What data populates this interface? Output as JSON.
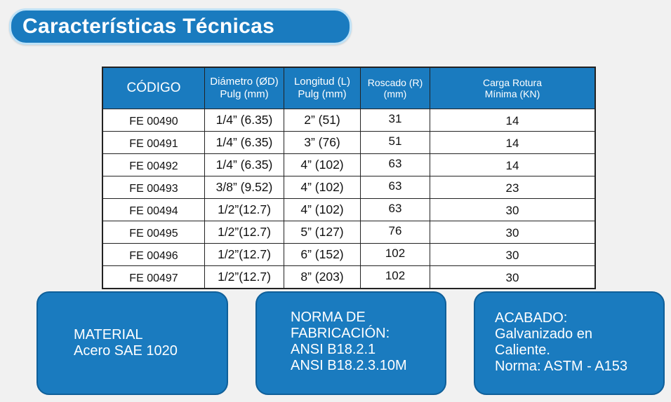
{
  "header": {
    "title": "Características Técnicas"
  },
  "table": {
    "columns": {
      "code": [
        "CÓDIGO"
      ],
      "diameter": [
        "Diámetro (ØD)",
        "Pulg (mm)"
      ],
      "length": [
        "Longitud (L)",
        "Pulg  (mm)"
      ],
      "thread": [
        "Roscado (R)",
        "(mm)"
      ],
      "load": [
        "Carga Rotura",
        "Mínima (KN)"
      ]
    },
    "rows": [
      {
        "code": "FE 00490",
        "diameter": "1/4” (6.35)",
        "length": "2” (51)",
        "thread": "31",
        "load": "14"
      },
      {
        "code": "FE 00491",
        "diameter": "1/4” (6.35)",
        "length": "3” (76)",
        "thread": "51",
        "load": "14"
      },
      {
        "code": "FE 00492",
        "diameter": "1/4” (6.35)",
        "length": "4” (102)",
        "thread": "63",
        "load": "14"
      },
      {
        "code": "FE 00493",
        "diameter": "3/8” (9.52)",
        "length": "4” (102)",
        "thread": "63",
        "load": "23"
      },
      {
        "code": "FE 00494",
        "diameter": "1/2”(12.7)",
        "length": "4” (102)",
        "thread": "63",
        "load": "30"
      },
      {
        "code": "FE 00495",
        "diameter": "1/2”(12.7)",
        "length": "5” (127)",
        "thread": "76",
        "load": "30"
      },
      {
        "code": "FE 00496",
        "diameter": "1/2”(12.7)",
        "length": "6” (152)",
        "thread": "102",
        "load": "30"
      },
      {
        "code": "FE 00497",
        "diameter": "1/2”(12.7)",
        "length": "8” (203)",
        "thread": "102",
        "load": "30"
      }
    ]
  },
  "cards": {
    "material": [
      "MATERIAL",
      "Acero SAE 1020"
    ],
    "norma": [
      "NORMA DE",
      "FABRICACIÓN:",
      "ANSI B18.2.1",
      "ANSI B18.2.3.10M"
    ],
    "acabado": [
      "ACABADO:",
      "Galvanizado en",
      "Caliente.",
      "Norma: ASTM - A153"
    ]
  },
  "colors": {
    "accent": "#1a7bbf",
    "pill_border": "#bfe2f7",
    "background": "#f1f1f1"
  }
}
